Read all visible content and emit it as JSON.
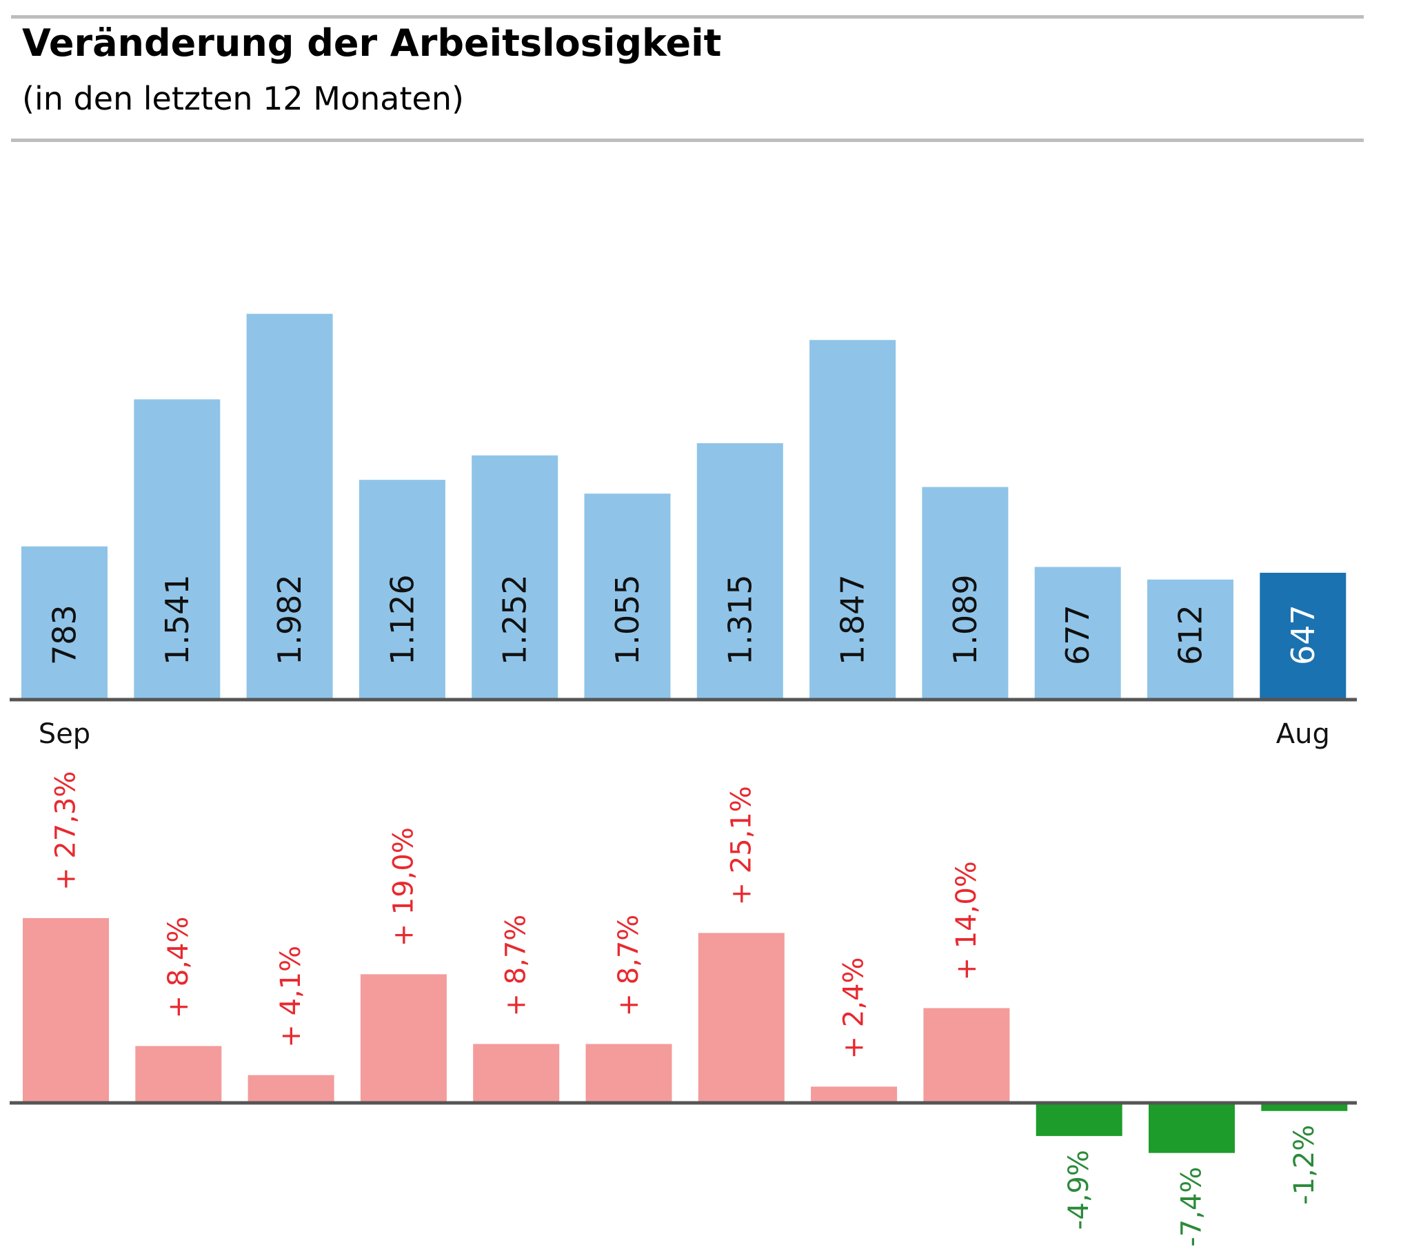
{
  "title": "Veränderung der Arbeitslosigkeit",
  "subtitle": "(in den letzten 12 Monaten)",
  "colors": {
    "bar": "#8fc4e8",
    "bar_highlight": "#1a72b0",
    "increase": "#f49b9b",
    "increase_text": "#e8292f",
    "decrease": "#1d9c2b",
    "decrease_text": "#2b8a3a",
    "axis": "#555555",
    "rule": "#bdbdbd"
  },
  "chart_data": [
    {
      "type": "bar",
      "categories": [
        "Sep",
        "",
        "",
        "",
        "",
        "",
        "",
        "",
        "",
        "",
        "",
        "Aug"
      ],
      "values": [
        783,
        1541,
        1982,
        1126,
        1252,
        1055,
        1315,
        1847,
        1089,
        677,
        612,
        647
      ],
      "value_labels": [
        "783",
        "1.541",
        "1.982",
        "1.126",
        "1.252",
        "1.055",
        "1.315",
        "1.847",
        "1.089",
        "677",
        "612",
        "647"
      ],
      "highlight_index": 11,
      "ylim": [
        0,
        2000
      ],
      "grid": false
    },
    {
      "type": "bar",
      "categories": [
        "Sep",
        "",
        "",
        "",
        "",
        "",
        "",
        "",
        "",
        "",
        "",
        "Aug"
      ],
      "values": [
        27.3,
        8.4,
        4.1,
        19.0,
        8.7,
        8.7,
        25.1,
        2.4,
        14.0,
        -4.9,
        -7.4,
        -1.2
      ],
      "value_labels": [
        "+ 27,3%",
        "+ 8,4%",
        "+ 4,1%",
        "+ 19,0%",
        "+ 8,7%",
        "+ 8,7%",
        "+ 25,1%",
        "+ 2,4%",
        "+ 14,0%",
        "-4,9%",
        "-7,4%",
        "-1,2%"
      ],
      "ylim": [
        -10,
        30
      ],
      "grid": false
    }
  ]
}
